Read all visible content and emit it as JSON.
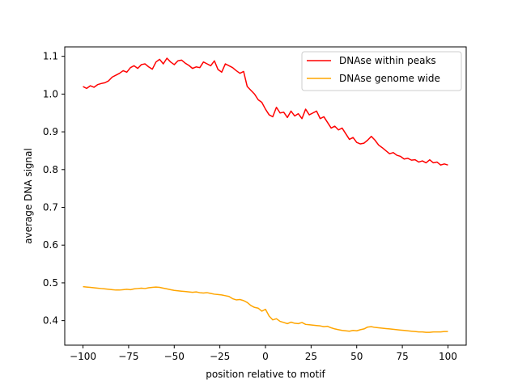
{
  "chart_data": {
    "type": "line",
    "xlabel": "position relative to motif",
    "ylabel": "average DNA signal",
    "xlim": [
      -110,
      110
    ],
    "ylim": [
      0.335,
      1.125
    ],
    "xticks": [
      -100,
      -75,
      -50,
      -25,
      0,
      25,
      50,
      75,
      100
    ],
    "yticks": [
      0.4,
      0.5,
      0.6,
      0.7,
      0.8,
      0.9,
      1.0,
      1.1
    ],
    "ytick_labels": [
      "0.4",
      "0.5",
      "0.6",
      "0.7",
      "0.8",
      "0.9",
      "1.0",
      "1.1"
    ],
    "grid": false,
    "legend_position": "top-right",
    "series": [
      {
        "name": "DNAse within peaks",
        "color": "#ff0000",
        "x": [
          -100,
          -98,
          -96,
          -94,
          -92,
          -90,
          -88,
          -86,
          -84,
          -82,
          -80,
          -78,
          -76,
          -74,
          -72,
          -70,
          -68,
          -66,
          -64,
          -62,
          -60,
          -58,
          -56,
          -54,
          -52,
          -50,
          -48,
          -46,
          -44,
          -42,
          -40,
          -38,
          -36,
          -34,
          -32,
          -30,
          -28,
          -26,
          -24,
          -22,
          -20,
          -18,
          -16,
          -14,
          -12,
          -10,
          -8,
          -6,
          -4,
          -2,
          0,
          2,
          4,
          6,
          8,
          10,
          12,
          14,
          16,
          18,
          20,
          22,
          24,
          26,
          28,
          30,
          32,
          34,
          36,
          38,
          40,
          42,
          44,
          46,
          48,
          50,
          52,
          54,
          56,
          58,
          60,
          62,
          64,
          66,
          68,
          70,
          72,
          74,
          76,
          78,
          80,
          82,
          84,
          86,
          88,
          90,
          92,
          94,
          96,
          98,
          100
        ],
        "values": [
          1.02,
          1.015,
          1.022,
          1.018,
          1.025,
          1.028,
          1.03,
          1.035,
          1.045,
          1.05,
          1.055,
          1.062,
          1.058,
          1.07,
          1.075,
          1.068,
          1.078,
          1.08,
          1.072,
          1.066,
          1.085,
          1.092,
          1.08,
          1.095,
          1.085,
          1.078,
          1.088,
          1.09,
          1.082,
          1.076,
          1.068,
          1.072,
          1.07,
          1.085,
          1.08,
          1.075,
          1.088,
          1.065,
          1.058,
          1.08,
          1.075,
          1.07,
          1.062,
          1.055,
          1.06,
          1.02,
          1.01,
          1.0,
          0.985,
          0.978,
          0.96,
          0.945,
          0.94,
          0.965,
          0.95,
          0.952,
          0.938,
          0.955,
          0.942,
          0.948,
          0.935,
          0.96,
          0.945,
          0.95,
          0.955,
          0.935,
          0.94,
          0.925,
          0.91,
          0.915,
          0.905,
          0.91,
          0.895,
          0.88,
          0.885,
          0.872,
          0.868,
          0.87,
          0.878,
          0.888,
          0.878,
          0.865,
          0.858,
          0.85,
          0.842,
          0.845,
          0.838,
          0.835,
          0.828,
          0.83,
          0.825,
          0.826,
          0.82,
          0.823,
          0.818,
          0.826,
          0.818,
          0.82,
          0.812,
          0.815,
          0.812
        ]
      },
      {
        "name": "DNAse genome wide",
        "color": "#ffa500",
        "x": [
          -100,
          -98,
          -96,
          -94,
          -92,
          -90,
          -88,
          -86,
          -84,
          -82,
          -80,
          -78,
          -76,
          -74,
          -72,
          -70,
          -68,
          -66,
          -64,
          -62,
          -60,
          -58,
          -56,
          -54,
          -52,
          -50,
          -48,
          -46,
          -44,
          -42,
          -40,
          -38,
          -36,
          -34,
          -32,
          -30,
          -28,
          -26,
          -24,
          -22,
          -20,
          -18,
          -16,
          -14,
          -12,
          -10,
          -8,
          -6,
          -4,
          -2,
          0,
          2,
          4,
          6,
          8,
          10,
          12,
          14,
          16,
          18,
          20,
          22,
          24,
          26,
          28,
          30,
          32,
          34,
          36,
          38,
          40,
          42,
          44,
          46,
          48,
          50,
          52,
          54,
          56,
          58,
          60,
          62,
          64,
          66,
          68,
          70,
          72,
          74,
          76,
          78,
          80,
          82,
          84,
          86,
          88,
          90,
          92,
          94,
          96,
          98,
          100
        ],
        "values": [
          0.49,
          0.489,
          0.488,
          0.487,
          0.486,
          0.485,
          0.484,
          0.483,
          0.482,
          0.481,
          0.481,
          0.482,
          0.483,
          0.482,
          0.484,
          0.485,
          0.486,
          0.485,
          0.487,
          0.488,
          0.489,
          0.488,
          0.486,
          0.484,
          0.482,
          0.48,
          0.479,
          0.478,
          0.477,
          0.476,
          0.475,
          0.476,
          0.474,
          0.473,
          0.474,
          0.472,
          0.47,
          0.469,
          0.468,
          0.466,
          0.464,
          0.458,
          0.455,
          0.456,
          0.453,
          0.448,
          0.44,
          0.435,
          0.433,
          0.425,
          0.43,
          0.412,
          0.402,
          0.405,
          0.398,
          0.395,
          0.392,
          0.396,
          0.393,
          0.392,
          0.395,
          0.39,
          0.389,
          0.388,
          0.387,
          0.386,
          0.384,
          0.385,
          0.381,
          0.378,
          0.376,
          0.374,
          0.373,
          0.372,
          0.374,
          0.373,
          0.376,
          0.378,
          0.383,
          0.384,
          0.382,
          0.381,
          0.38,
          0.379,
          0.378,
          0.377,
          0.376,
          0.375,
          0.374,
          0.373,
          0.372,
          0.371,
          0.37,
          0.37,
          0.369,
          0.369,
          0.37,
          0.37,
          0.37,
          0.371,
          0.371
        ]
      }
    ]
  }
}
